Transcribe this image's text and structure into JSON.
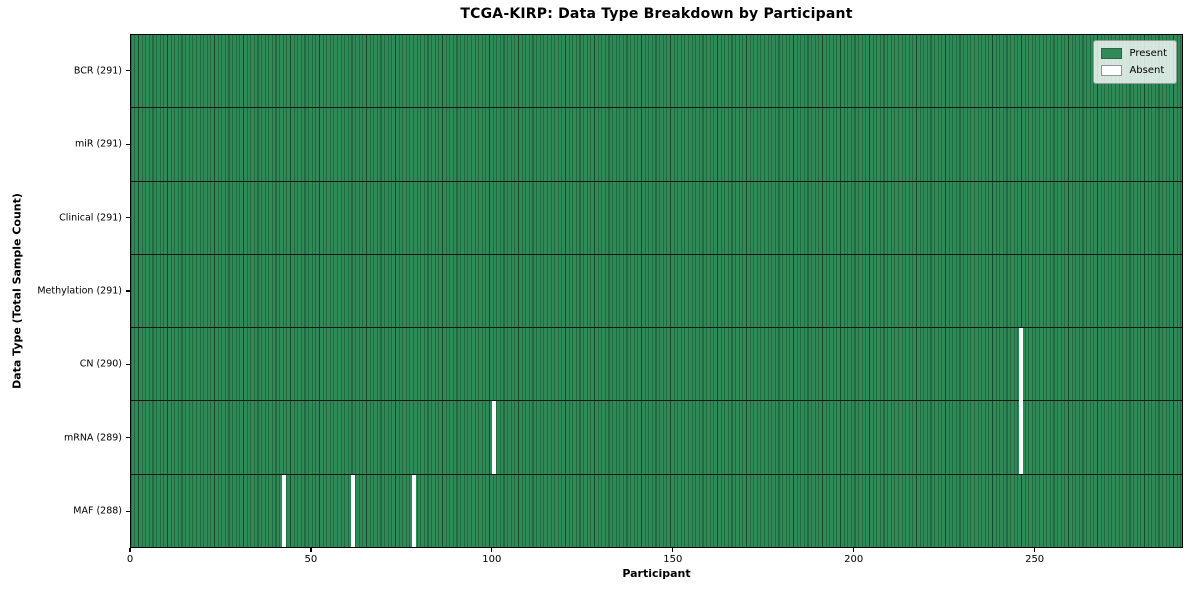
{
  "chart_data": {
    "type": "heatmap",
    "title": "TCGA-KIRP: Data Type Breakdown by Participant",
    "xlabel": "Participant",
    "ylabel": "Data Type (Total Sample Count)",
    "n_participants": 291,
    "xlim": [
      0,
      291
    ],
    "x_ticks": [
      0,
      50,
      100,
      150,
      200,
      250
    ],
    "grid": "cell-borders",
    "legend": {
      "position": "upper right",
      "entries": [
        {
          "label": "Present",
          "color": "#2e8b57"
        },
        {
          "label": "Absent",
          "color": "#ffffff"
        }
      ]
    },
    "rows": [
      {
        "data_type": "BCR",
        "label": "BCR (291)",
        "present_count": 291,
        "absent_participants": []
      },
      {
        "data_type": "miR",
        "label": "miR (291)",
        "present_count": 291,
        "absent_participants": []
      },
      {
        "data_type": "Clinical",
        "label": "Clinical (291)",
        "present_count": 291,
        "absent_participants": []
      },
      {
        "data_type": "Methylation",
        "label": "Methylation (291)",
        "present_count": 291,
        "absent_participants": []
      },
      {
        "data_type": "CN",
        "label": "CN (290)",
        "present_count": 290,
        "absent_participants": [
          246
        ]
      },
      {
        "data_type": "mRNA",
        "label": "mRNA (289)",
        "present_count": 289,
        "absent_participants": [
          100,
          246
        ]
      },
      {
        "data_type": "MAF",
        "label": "MAF (288)",
        "present_count": 288,
        "absent_participants": [
          42,
          61,
          78
        ]
      }
    ],
    "colors": {
      "present": "#2e8b57",
      "absent": "#ffffff",
      "cell_edge": "rgba(0,0,0,0.48)",
      "row_divider": "#161616",
      "spine": "#000000",
      "background": "#ffffff"
    }
  }
}
